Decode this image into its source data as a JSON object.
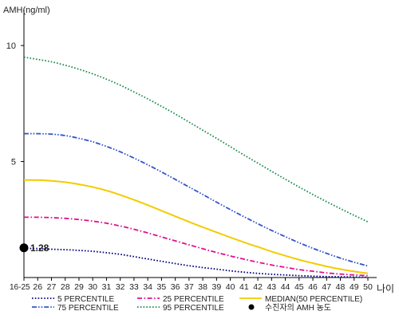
{
  "chart_data": {
    "type": "line",
    "title": "",
    "ylabel": "AMH(ng/ml)",
    "xlabel": "나이",
    "ylim": [
      0,
      11
    ],
    "yticks": [
      5,
      10
    ],
    "grid": false,
    "legend_position": "bottom",
    "categories": [
      "16-25",
      "26",
      "27",
      "28",
      "29",
      "30",
      "31",
      "32",
      "33",
      "34",
      "35",
      "36",
      "37",
      "38",
      "39",
      "40",
      "41",
      "42",
      "43",
      "44",
      "45",
      "46",
      "47",
      "48",
      "49",
      "50"
    ],
    "series": [
      {
        "name": "5 PERCENTILE",
        "color": "#000080",
        "dash": "dotted",
        "values": [
          1.25,
          1.25,
          1.22,
          1.2,
          1.17,
          1.13,
          1.07,
          1.0,
          0.9,
          0.8,
          0.7,
          0.6,
          0.51,
          0.43,
          0.36,
          0.29,
          0.23,
          0.18,
          0.14,
          0.11,
          0.08,
          0.06,
          0.04,
          0.03,
          0.02,
          0.01
        ]
      },
      {
        "name": "25 PERCENTILE",
        "color": "#e01090",
        "dash": "dashdot",
        "values": [
          2.6,
          2.6,
          2.58,
          2.55,
          2.5,
          2.43,
          2.34,
          2.22,
          2.08,
          1.92,
          1.75,
          1.58,
          1.41,
          1.24,
          1.08,
          0.93,
          0.79,
          0.66,
          0.54,
          0.44,
          0.34,
          0.27,
          0.2,
          0.15,
          0.11,
          0.08
        ]
      },
      {
        "name": "MEDIAN(50 PERCENTILE)",
        "color": "#f2cc00",
        "dash": "solid",
        "values": [
          4.2,
          4.2,
          4.17,
          4.11,
          4.02,
          3.9,
          3.75,
          3.56,
          3.35,
          3.12,
          2.88,
          2.64,
          2.4,
          2.17,
          1.95,
          1.73,
          1.52,
          1.32,
          1.12,
          0.94,
          0.77,
          0.62,
          0.48,
          0.36,
          0.26,
          0.18
        ]
      },
      {
        "name": "75 PERCENTILE",
        "color": "#3355cc",
        "dash": "dashdotdot",
        "values": [
          6.2,
          6.2,
          6.18,
          6.12,
          6.0,
          5.85,
          5.65,
          5.42,
          5.15,
          4.86,
          4.55,
          4.23,
          3.9,
          3.58,
          3.25,
          2.93,
          2.62,
          2.32,
          2.03,
          1.76,
          1.5,
          1.26,
          1.04,
          0.84,
          0.66,
          0.5
        ]
      },
      {
        "name": "95 PERCENTILE",
        "color": "#1a8a4a",
        "dash": "dotted",
        "values": [
          9.5,
          9.4,
          9.3,
          9.15,
          8.98,
          8.78,
          8.55,
          8.29,
          8.0,
          7.7,
          7.38,
          7.05,
          6.7,
          6.35,
          6.0,
          5.64,
          5.28,
          4.93,
          4.58,
          4.24,
          3.9,
          3.58,
          3.27,
          2.97,
          2.68,
          2.4
        ]
      }
    ],
    "marker": {
      "name": "수진자의 AMH 농도",
      "x": "16-25",
      "y": 1.28,
      "label": "1.28",
      "color": "#000000"
    }
  }
}
